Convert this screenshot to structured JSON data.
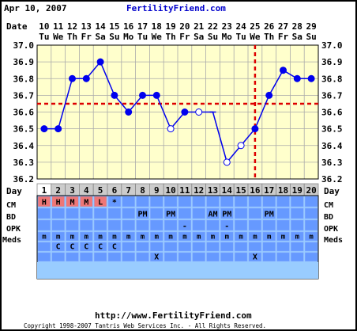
{
  "header": {
    "date": "Apr 10, 2007",
    "site": "FertilityFriend.com"
  },
  "footer": {
    "url": "http://www.FertilityFriend.com",
    "copyright": "Copyright 1998-2007 Tantris Web Services Inc. - All Rights Reserved."
  },
  "colors": {
    "border": "#000000",
    "plot_bg": "#ffffcc",
    "grid": "#aaaaaa",
    "data_line": "#0000ee",
    "coverline": "#dd0000",
    "rows_bg": "#99ccff",
    "row_cells": "#6699ff",
    "cm_fill": "#ee7777",
    "day_bg": "#cccccc",
    "day_highlight": "#ffffff",
    "site_text": "#0000cc"
  },
  "chart_data": {
    "type": "line",
    "ylabel": "Temperature",
    "ylim": [
      36.2,
      37.0
    ],
    "yticks": [
      "37.0",
      "36.9",
      "36.8",
      "36.7",
      "36.6",
      "36.5",
      "36.4",
      "36.3",
      "36.2"
    ],
    "grid": true,
    "date_label": "Date",
    "dates": [
      "10",
      "11",
      "12",
      "13",
      "14",
      "15",
      "16",
      "17",
      "18",
      "19",
      "20",
      "21",
      "22",
      "23",
      "24",
      "25",
      "26",
      "27",
      "28",
      "29"
    ],
    "weekdays": [
      "Tu",
      "We",
      "Th",
      "Fr",
      "Sa",
      "Su",
      "Mo",
      "Tu",
      "We",
      "Th",
      "Fr",
      "Sa",
      "Su",
      "Mo",
      "Tu",
      "We",
      "Th",
      "Fr",
      "Sa",
      "Su"
    ],
    "cycle_days": [
      "1",
      "2",
      "3",
      "4",
      "5",
      "6",
      "7",
      "8",
      "9",
      "10",
      "11",
      "12",
      "13",
      "14",
      "15",
      "16",
      "17",
      "18",
      "19",
      "20"
    ],
    "temperatures": [
      36.5,
      36.5,
      36.8,
      36.8,
      36.9,
      36.7,
      36.6,
      36.7,
      36.7,
      36.5,
      36.6,
      36.6,
      36.6,
      36.3,
      36.4,
      36.5,
      36.7,
      36.85,
      36.8,
      36.8
    ],
    "open_points": [
      9,
      11,
      13,
      14
    ],
    "dash_points": [
      12
    ],
    "coverline": 36.65,
    "ovulation_day_index": 15
  },
  "rows": {
    "day": {
      "label": "Day"
    },
    "cm": {
      "label": "CM",
      "cells": [
        "H",
        "H",
        "M",
        "M",
        "L",
        "*",
        "",
        "",
        "",
        "",
        "",
        "",
        "",
        "",
        "",
        "",
        "",
        "",
        "",
        ""
      ],
      "highlight": [
        0,
        1,
        2,
        3,
        4
      ]
    },
    "bd": {
      "label": "BD",
      "cells": [
        "",
        "",
        "",
        "",
        "",
        "",
        "",
        "PM",
        "",
        "PM",
        "",
        "",
        "AM",
        "PM",
        "",
        "",
        "PM",
        "",
        "",
        ""
      ]
    },
    "opk": {
      "label": "OPK",
      "cells": [
        "",
        "",
        "",
        "",
        "",
        "",
        "",
        "",
        "",
        "",
        "-",
        "",
        "",
        "-",
        "",
        "",
        "",
        "",
        "",
        ""
      ]
    },
    "meds": {
      "label": "Meds",
      "cells": [
        "m",
        "m",
        "m",
        "m",
        "m",
        "m",
        "m",
        "m",
        "m",
        "m",
        "m",
        "m",
        "m",
        "m",
        "m",
        "m",
        "m",
        "m",
        "m",
        "m"
      ]
    },
    "meds2": {
      "cells": [
        "",
        "C",
        "C",
        "C",
        "C",
        "C",
        "",
        "",
        "",
        "",
        "",
        "",
        "",
        "",
        "",
        "",
        "",
        "",
        "",
        ""
      ]
    },
    "meds3": {
      "cells": [
        "",
        "",
        "",
        "",
        "",
        "",
        "",
        "",
        "X",
        "",
        "",
        "",
        "",
        "",
        "",
        "X",
        "",
        "",
        "",
        ""
      ]
    }
  }
}
